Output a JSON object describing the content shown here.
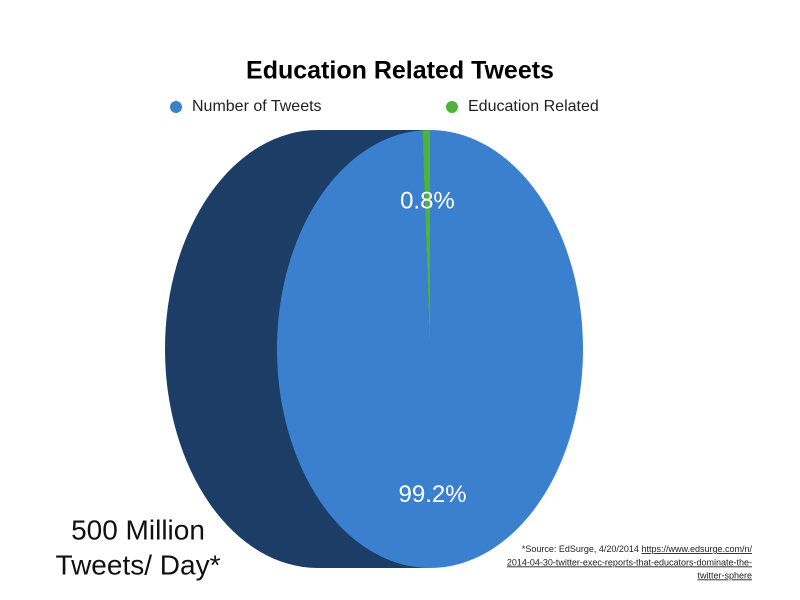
{
  "chart_data": {
    "type": "pie",
    "title": "Education Related Tweets",
    "categories": [
      "Number of Tweets",
      "Education Related"
    ],
    "values": [
      99.2,
      0.8
    ],
    "value_labels": [
      "99.2%",
      "0.8%"
    ],
    "colors": [
      "#3b80cf",
      "#4db33d"
    ],
    "legend": "top",
    "annotation": [
      "500 Million",
      "Tweets/ Day*"
    ],
    "source": {
      "text": "*Source: EdSurge, 4/20/2014",
      "link": [
        "https://www.edsurge.com/n/",
        "2014-04-30-twitter-exec-reports-that-educators-dominate-the-",
        "twitter-sphere"
      ]
    }
  }
}
